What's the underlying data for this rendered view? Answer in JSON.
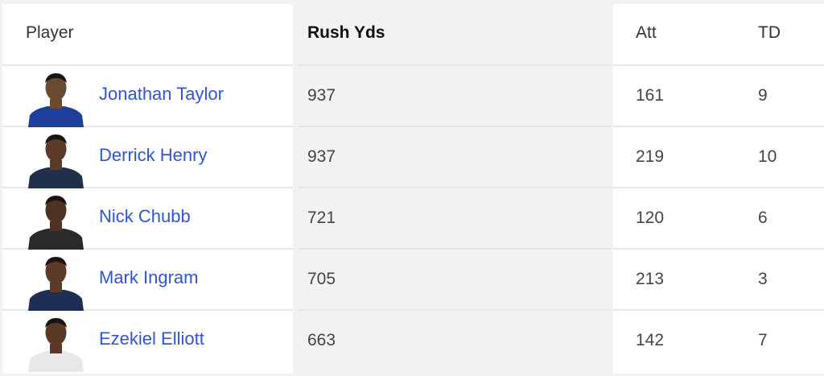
{
  "columns": {
    "player": "Player",
    "rush_yds": "Rush Yds",
    "att": "Att",
    "td": "TD"
  },
  "rows": [
    {
      "name": "Jonathan Taylor",
      "rush_yds": "937",
      "att": "161",
      "td": "9",
      "jersey_color": "#1f3e9c",
      "skin": "#6b4a32"
    },
    {
      "name": "Derrick Henry",
      "rush_yds": "937",
      "att": "219",
      "td": "10",
      "jersey_color": "#20304a",
      "skin": "#5a3b28"
    },
    {
      "name": "Nick Chubb",
      "rush_yds": "721",
      "att": "120",
      "td": "6",
      "jersey_color": "#2a2a2a",
      "skin": "#4f3322"
    },
    {
      "name": "Mark Ingram",
      "rush_yds": "705",
      "att": "213",
      "td": "3",
      "jersey_color": "#1d2f55",
      "skin": "#5c3b27"
    },
    {
      "name": "Ezekiel Elliott",
      "rush_yds": "663",
      "att": "142",
      "td": "7",
      "jersey_color": "#e8e8ea",
      "skin": "#5a3a26"
    }
  ]
}
